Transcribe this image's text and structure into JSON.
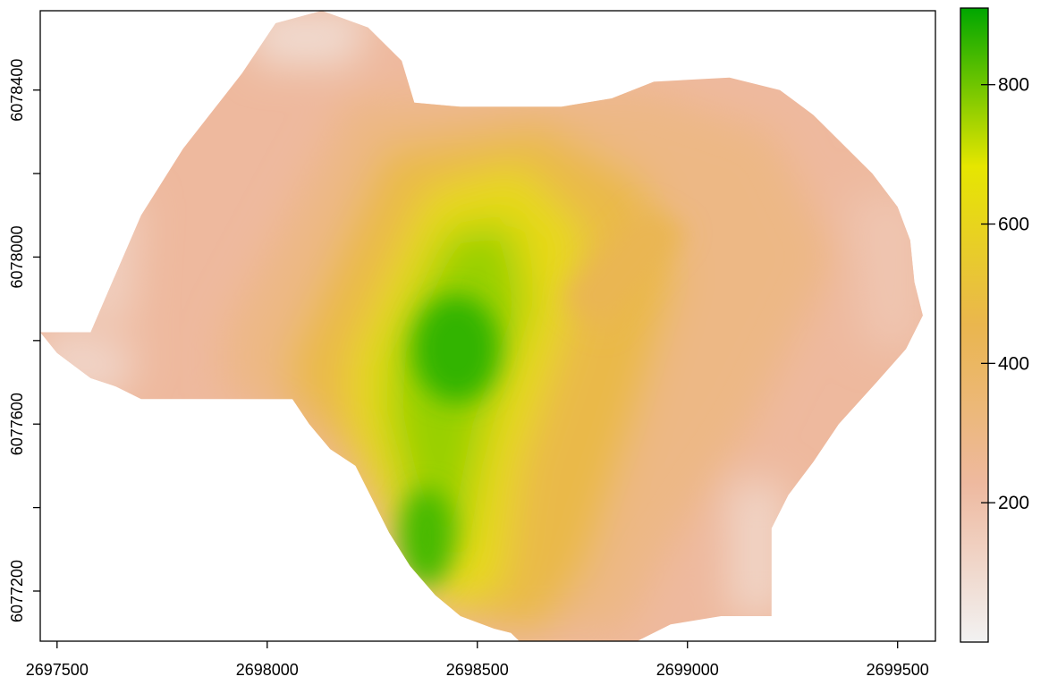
{
  "chart_data": {
    "type": "heatmap",
    "title": "",
    "xlabel": "",
    "ylabel": "",
    "xlim": [
      2697460,
      2699590
    ],
    "ylim": [
      6077080,
      6078590
    ],
    "x_ticks": [
      2697500,
      2698000,
      2698500,
      2699000,
      2699500
    ],
    "x_tick_labels": [
      "2697500",
      "2698000",
      "2698500",
      "2699000",
      "2699500"
    ],
    "y_ticks": [
      6077200,
      6077400,
      6077600,
      6077800,
      6078000,
      6078200,
      6078400
    ],
    "y_tick_labels": [
      "6077200",
      "",
      "6077600",
      "",
      "6078000",
      "",
      "6078400"
    ],
    "legend": {
      "placement": "right",
      "range": [
        0,
        910
      ],
      "ticks": [
        200,
        400,
        600,
        800
      ],
      "tick_labels": [
        "200",
        "400",
        "600",
        "800"
      ]
    },
    "colormap": [
      "#f2f2f2",
      "#eeb99f",
      "#eab64e",
      "#e6e600",
      "#00a600"
    ],
    "data_summary": {
      "peak_value": 860,
      "peak_location": [
        2698450,
        6077780
      ],
      "ridge_axis_points": [
        [
          2698520,
          6078220
        ],
        [
          2698430,
          6077780
        ],
        [
          2698380,
          6077350
        ],
        [
          2698430,
          6077150
        ]
      ]
    }
  }
}
